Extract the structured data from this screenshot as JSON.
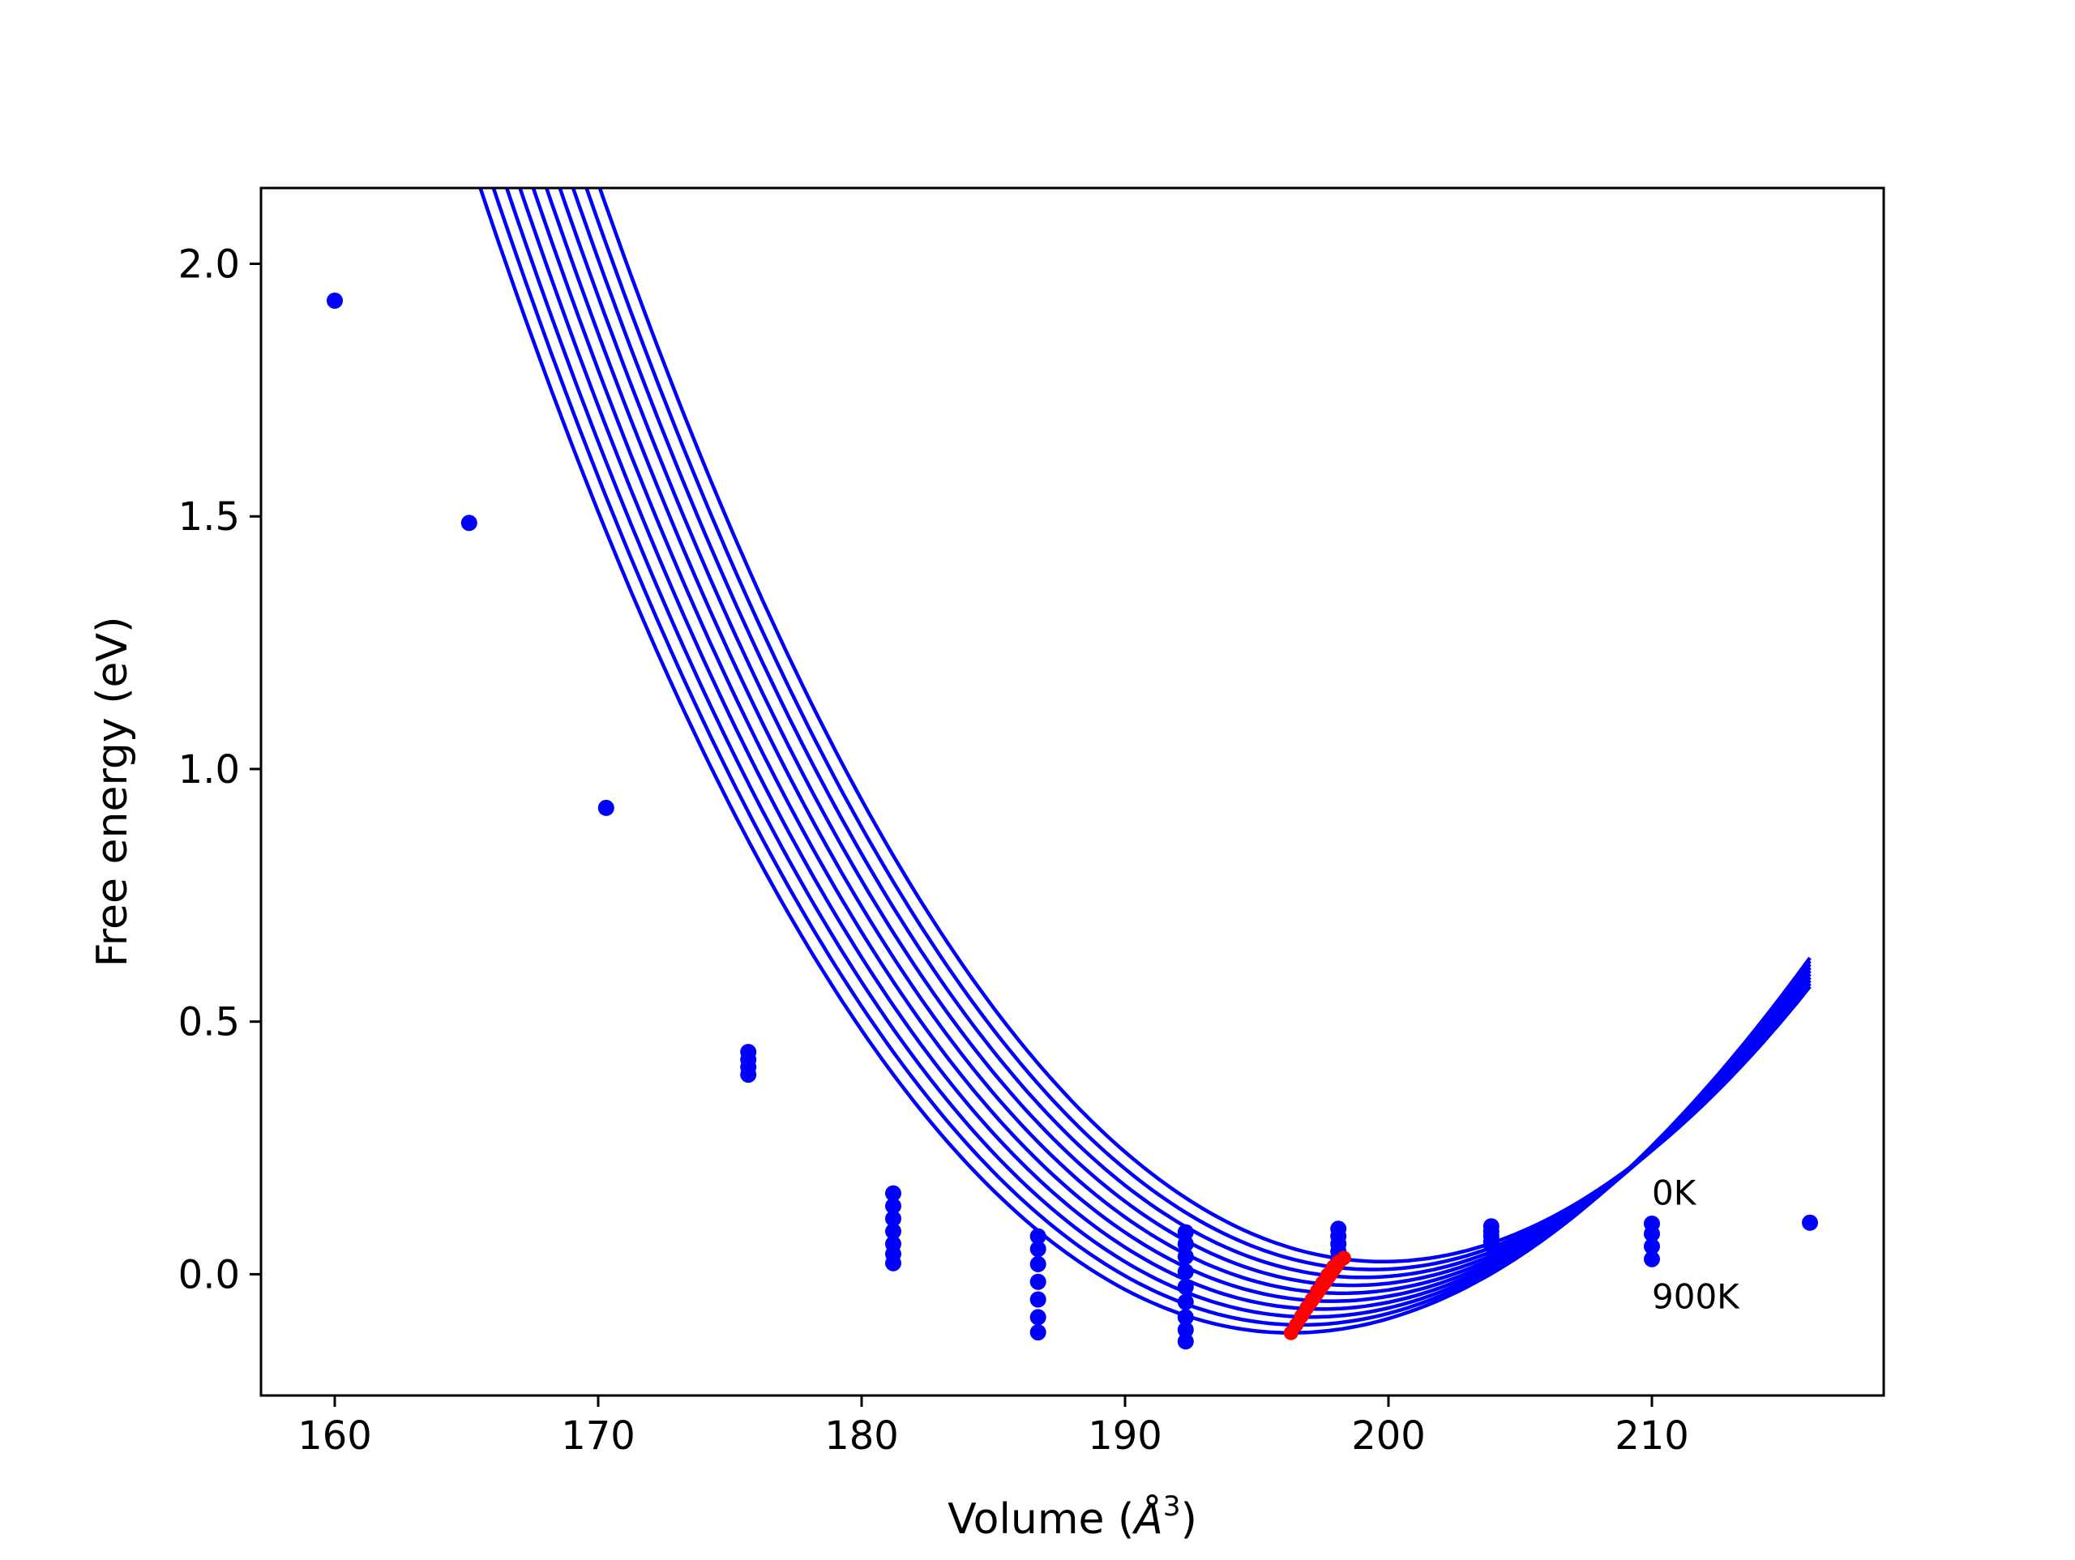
{
  "chart_data": {
    "type": "scatter",
    "title": "",
    "xlabel": "Volume (",
    "xlabel_symbol": "Å",
    "xlabel_exponent": "3",
    "xlabel_close": ")",
    "ylabel": "Free energy (eV)",
    "xlim": [
      157.2,
      218.8
    ],
    "ylim": [
      -0.24,
      2.15
    ],
    "xticks": [
      160,
      170,
      180,
      190,
      200,
      210
    ],
    "yticks": [
      0.0,
      0.5,
      1.0,
      1.5,
      2.0
    ],
    "xtick_labels": [
      "160",
      "170",
      "180",
      "190",
      "200",
      "210"
    ],
    "ytick_labels": [
      "0.0",
      "0.5",
      "1.0",
      "1.5",
      "2.0"
    ],
    "grid": false,
    "annotations": [
      {
        "text": "0K",
        "x": 210.0,
        "y": 0.16
      },
      {
        "text": "900K",
        "x": 210.0,
        "y": -0.045
      }
    ],
    "fit_curves": {
      "color": "#0000ff",
      "x_range": [
        160,
        216
      ],
      "count": 10,
      "low_T": {
        "V0": 199.8,
        "F0": 0.025,
        "k": 0.00219,
        "c": 7.15e-06
      },
      "high_T": {
        "V0": 196.3,
        "F0": -0.116,
        "k": 0.0021,
        "c": 9.5e-06
      }
    },
    "series": [
      {
        "color": "#0000ff",
        "points": [
          [
            160.0,
            1.927
          ],
          [
            165.1,
            1.487
          ],
          [
            170.3,
            0.923
          ],
          [
            175.7,
            0.44
          ],
          [
            175.7,
            0.425
          ],
          [
            175.7,
            0.41
          ],
          [
            175.7,
            0.395
          ],
          [
            181.2,
            0.16
          ],
          [
            181.2,
            0.135
          ],
          [
            181.2,
            0.11
          ],
          [
            181.2,
            0.085
          ],
          [
            181.2,
            0.06
          ],
          [
            181.2,
            0.04
          ],
          [
            181.2,
            0.022
          ],
          [
            186.7,
            0.075
          ],
          [
            186.7,
            0.05
          ],
          [
            186.7,
            0.02
          ],
          [
            186.7,
            -0.015
          ],
          [
            186.7,
            -0.05
          ],
          [
            186.7,
            -0.085
          ],
          [
            186.7,
            -0.115
          ],
          [
            192.3,
            0.083
          ],
          [
            192.3,
            0.06
          ],
          [
            192.3,
            0.035
          ],
          [
            192.3,
            0.005
          ],
          [
            192.3,
            -0.025
          ],
          [
            192.3,
            -0.055
          ],
          [
            192.3,
            -0.085
          ],
          [
            192.3,
            -0.11
          ],
          [
            192.3,
            -0.133
          ],
          [
            198.1,
            0.09
          ],
          [
            198.1,
            0.075
          ],
          [
            198.1,
            0.06
          ],
          [
            198.1,
            0.045
          ],
          [
            198.1,
            0.03
          ],
          [
            203.9,
            0.095
          ],
          [
            203.9,
            0.085
          ],
          [
            203.9,
            0.075
          ],
          [
            203.9,
            0.065
          ],
          [
            203.9,
            0.058
          ],
          [
            210.0,
            0.1
          ],
          [
            210.0,
            0.08
          ],
          [
            210.0,
            0.055
          ],
          [
            210.0,
            0.03
          ],
          [
            216.0,
            0.102
          ]
        ]
      },
      {
        "color": "#ff0000",
        "line_points": [
          [
            196.3,
            -0.116
          ],
          [
            198.3,
            0.032
          ]
        ],
        "points": [
          [
            196.3,
            -0.116
          ],
          [
            196.5,
            -0.1
          ],
          [
            196.7,
            -0.083
          ],
          [
            196.9,
            -0.066
          ],
          [
            197.1,
            -0.05
          ],
          [
            197.3,
            -0.033
          ],
          [
            197.5,
            -0.017
          ],
          [
            197.7,
            -0.001
          ],
          [
            197.9,
            0.014
          ],
          [
            198.1,
            0.024
          ],
          [
            198.3,
            0.032
          ]
        ]
      }
    ]
  }
}
